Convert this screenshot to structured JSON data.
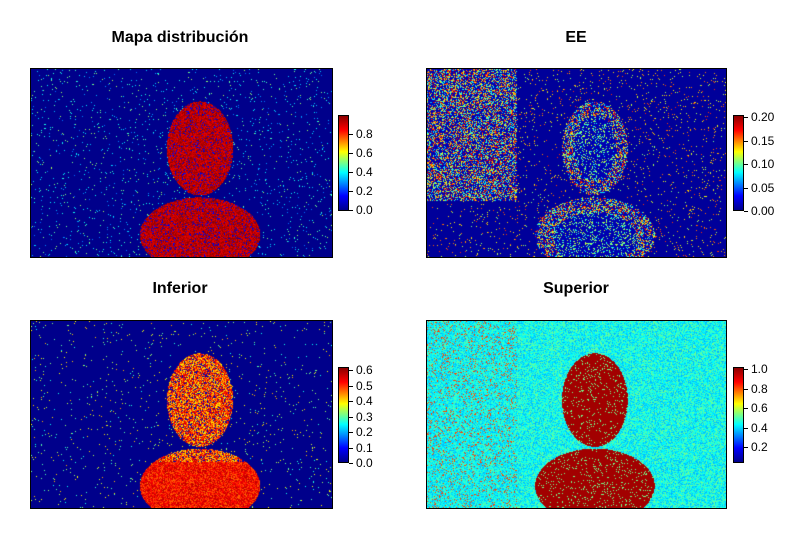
{
  "panels": [
    {
      "id": "dist",
      "title": "Mapa distribución",
      "legend_ticks": [
        "0.8",
        "0.6",
        "0.4",
        "0.2",
        "0.0"
      ],
      "scale_range": [
        0,
        1
      ]
    },
    {
      "id": "ee",
      "title": "EE",
      "legend_ticks": [
        "0.20",
        "0.15",
        "0.10",
        "0.05",
        "0.00"
      ],
      "scale_range": [
        0,
        0.21
      ]
    },
    {
      "id": "inf",
      "title": "Inferior",
      "legend_ticks": [
        "0.6",
        "0.5",
        "0.4",
        "0.3",
        "0.2",
        "0.1",
        "0.0"
      ],
      "scale_range": [
        0,
        0.65
      ]
    },
    {
      "id": "sup",
      "title": "Superior",
      "legend_ticks": [
        "1.0",
        "0.8",
        "0.6",
        "0.4",
        "0.2"
      ],
      "scale_range": [
        0.05,
        1.0
      ]
    }
  ],
  "colors": {
    "low": "#00008B",
    "mid_blue": "#0000FF",
    "cyan": "#00FFFF",
    "yellow": "#FFFF00",
    "red": "#FF0000",
    "high": "#8B0000"
  },
  "colorbar_icon": "jet-colorbar"
}
